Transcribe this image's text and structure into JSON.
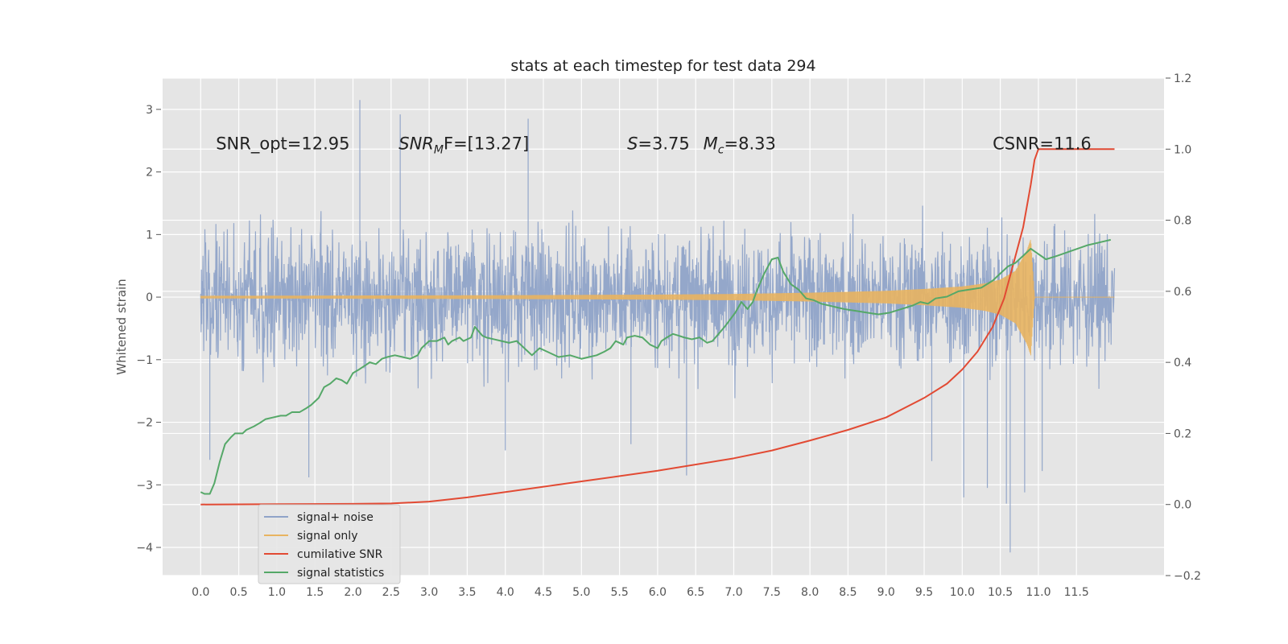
{
  "chart_data": {
    "type": "line",
    "title": "stats at each timestep for test data 294",
    "ylabel": "Whitened strain",
    "ylabel_right": "",
    "xlabel": "",
    "xlim": [
      -0.5,
      12.65
    ],
    "ylim": [
      -4.45,
      3.5
    ],
    "ylim_right": [
      -0.2,
      1.2
    ],
    "grid": true,
    "legend_position": "lower-left",
    "x_ticks": [
      "0.0",
      "0.5",
      "1.0",
      "1.5",
      "2.0",
      "2.5",
      "3.0",
      "3.5",
      "4.0",
      "4.5",
      "5.0",
      "5.5",
      "6.0",
      "6.5",
      "7.0",
      "7.5",
      "8.0",
      "8.5",
      "9.0",
      "9.5",
      "10.0",
      "10.5",
      "11.0",
      "11.5"
    ],
    "y_ticks_left": [
      "3",
      "2",
      "1",
      "0",
      "−1",
      "−2",
      "−3",
      "−4"
    ],
    "y_ticks_right": [
      "1.2",
      "1.0",
      "0.8",
      "0.6",
      "0.4",
      "0.2",
      "0.0",
      "−0.2"
    ],
    "annotations": [
      {
        "text": "SNR_opt=12.95",
        "x": 0.2,
        "y": 2.45
      },
      {
        "text": "SNR",
        "sub": "M",
        "rest": "F=[13.27]",
        "x": 2.6,
        "y": 2.45
      },
      {
        "text": "S",
        "rest": "=3.75",
        "x": 5.6,
        "y": 2.45
      },
      {
        "text": "M",
        "sub": "c",
        "rest": "=8.33",
        "x": 6.6,
        "y": 2.45
      },
      {
        "text": "CSNR=11.6",
        "x": 10.4,
        "y": 2.45
      }
    ],
    "series": [
      {
        "name": "signal+ noise",
        "axis": "left",
        "color": "#8fa3c8",
        "kind": "noise",
        "x_range": [
          0.0,
          12.0
        ],
        "typical_range": [
          -1.3,
          1.3
        ],
        "extremes": [
          {
            "x": 1.42,
            "y": -2.88
          },
          {
            "x": 2.09,
            "y": 3.15
          },
          {
            "x": 2.62,
            "y": 2.92
          },
          {
            "x": 4.3,
            "y": 2.85
          },
          {
            "x": 6.38,
            "y": -2.85
          },
          {
            "x": 9.6,
            "y": -2.62
          },
          {
            "x": 10.02,
            "y": -3.2
          },
          {
            "x": 10.33,
            "y": -3.05
          },
          {
            "x": 10.58,
            "y": -3.3
          },
          {
            "x": 10.63,
            "y": -4.08
          },
          {
            "x": 10.82,
            "y": -3.12
          },
          {
            "x": 11.05,
            "y": -2.78
          },
          {
            "x": 0.12,
            "y": -2.6
          },
          {
            "x": 5.65,
            "y": -2.35
          },
          {
            "x": 4.0,
            "y": -2.45
          }
        ]
      },
      {
        "name": "signal only",
        "axis": "left",
        "color": "#e8b461",
        "kind": "chirp",
        "x": [
          0.0,
          2.0,
          4.0,
          6.0,
          7.0,
          8.0,
          9.0,
          9.5,
          10.0,
          10.3,
          10.5,
          10.7,
          10.85,
          10.9,
          10.95,
          11.0,
          12.0
        ],
        "envelope": [
          0.02,
          0.025,
          0.03,
          0.04,
          0.05,
          0.07,
          0.1,
          0.13,
          0.17,
          0.22,
          0.28,
          0.42,
          0.75,
          0.93,
          0.0,
          0.0,
          0.0
        ]
      },
      {
        "name": "cumilative SNR",
        "axis": "right",
        "color": "#e24a33",
        "x": [
          0.0,
          1.0,
          2.0,
          2.5,
          3.0,
          3.5,
          4.0,
          5.0,
          6.0,
          7.0,
          7.5,
          8.0,
          8.5,
          9.0,
          9.5,
          9.8,
          10.0,
          10.2,
          10.4,
          10.55,
          10.7,
          10.8,
          10.9,
          10.95,
          11.0,
          12.0
        ],
        "values": [
          0.0,
          0.001,
          0.002,
          0.003,
          0.008,
          0.02,
          0.035,
          0.065,
          0.095,
          0.13,
          0.152,
          0.18,
          0.21,
          0.245,
          0.3,
          0.34,
          0.38,
          0.43,
          0.5,
          0.58,
          0.7,
          0.78,
          0.9,
          0.97,
          1.0,
          1.0
        ]
      },
      {
        "name": "signal statistics",
        "axis": "right",
        "color": "#55a868",
        "x": [
          0.0,
          0.05,
          0.12,
          0.18,
          0.25,
          0.32,
          0.4,
          0.45,
          0.55,
          0.6,
          0.7,
          0.78,
          0.85,
          0.95,
          1.05,
          1.12,
          1.2,
          1.3,
          1.38,
          1.45,
          1.55,
          1.62,
          1.7,
          1.78,
          1.85,
          1.92,
          2.0,
          2.08,
          2.15,
          2.22,
          2.3,
          2.38,
          2.45,
          2.55,
          2.65,
          2.75,
          2.85,
          2.9,
          3.0,
          3.1,
          3.2,
          3.25,
          3.3,
          3.4,
          3.45,
          3.55,
          3.6,
          3.7,
          3.75,
          3.85,
          3.95,
          4.05,
          4.15,
          4.25,
          4.35,
          4.45,
          4.55,
          4.7,
          4.85,
          5.0,
          5.1,
          5.2,
          5.3,
          5.38,
          5.45,
          5.55,
          5.6,
          5.7,
          5.8,
          5.9,
          6.0,
          6.05,
          6.12,
          6.2,
          6.28,
          6.35,
          6.45,
          6.55,
          6.65,
          6.72,
          6.8,
          6.88,
          6.95,
          7.02,
          7.1,
          7.18,
          7.25,
          7.3,
          7.4,
          7.5,
          7.58,
          7.65,
          7.75,
          7.85,
          7.95,
          8.05,
          8.15,
          8.25,
          8.35,
          8.45,
          8.6,
          8.75,
          8.9,
          9.05,
          9.2,
          9.35,
          9.45,
          9.55,
          9.65,
          9.8,
          9.95,
          10.1,
          10.25,
          10.4,
          10.5,
          10.6,
          10.7,
          10.8,
          10.9,
          11.0,
          11.1,
          11.25,
          11.45,
          11.65,
          11.85,
          11.95
        ],
        "values": [
          0.035,
          0.03,
          0.03,
          0.06,
          0.12,
          0.17,
          0.19,
          0.2,
          0.2,
          0.21,
          0.22,
          0.23,
          0.24,
          0.245,
          0.25,
          0.25,
          0.26,
          0.26,
          0.27,
          0.28,
          0.3,
          0.33,
          0.34,
          0.355,
          0.35,
          0.34,
          0.37,
          0.38,
          0.39,
          0.4,
          0.395,
          0.41,
          0.415,
          0.42,
          0.415,
          0.41,
          0.42,
          0.44,
          0.46,
          0.46,
          0.47,
          0.45,
          0.46,
          0.47,
          0.46,
          0.47,
          0.5,
          0.475,
          0.47,
          0.465,
          0.46,
          0.455,
          0.46,
          0.44,
          0.42,
          0.44,
          0.43,
          0.415,
          0.42,
          0.41,
          0.415,
          0.42,
          0.43,
          0.44,
          0.46,
          0.45,
          0.47,
          0.475,
          0.47,
          0.45,
          0.44,
          0.46,
          0.47,
          0.48,
          0.475,
          0.47,
          0.465,
          0.47,
          0.455,
          0.46,
          0.48,
          0.5,
          0.52,
          0.54,
          0.57,
          0.55,
          0.57,
          0.6,
          0.65,
          0.69,
          0.695,
          0.655,
          0.62,
          0.605,
          0.58,
          0.575,
          0.565,
          0.56,
          0.555,
          0.55,
          0.545,
          0.54,
          0.535,
          0.54,
          0.55,
          0.56,
          0.57,
          0.565,
          0.58,
          0.585,
          0.6,
          0.605,
          0.61,
          0.63,
          0.65,
          0.67,
          0.68,
          0.7,
          0.72,
          0.705,
          0.69,
          0.7,
          0.715,
          0.73,
          0.74,
          0.745
        ]
      }
    ]
  }
}
